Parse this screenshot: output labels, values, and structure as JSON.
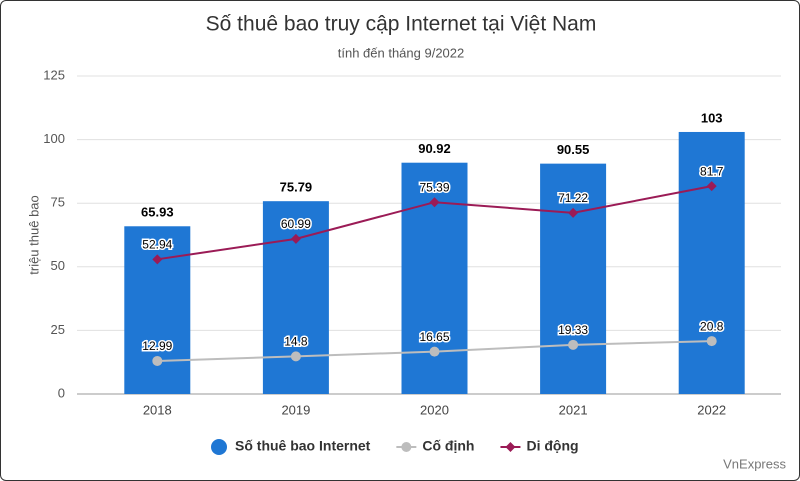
{
  "chart_data": {
    "type": "bar",
    "title": "Số thuê bao truy cập Internet tại Việt Nam",
    "subtitle": "tính đến tháng 9/2022",
    "y_label": "triệu thuê bao",
    "source": "VnExpress",
    "categories": [
      "2018",
      "2019",
      "2020",
      "2021",
      "2022"
    ],
    "series": [
      {
        "name": "Số thuê bao Internet",
        "type": "bar",
        "color": "#1f77d4",
        "values": [
          65.93,
          75.79,
          90.92,
          90.55,
          103
        ]
      },
      {
        "name": "Cố định",
        "type": "line",
        "marker": "circle",
        "color": "#bdbdbd",
        "values": [
          12.99,
          14.8,
          16.65,
          19.33,
          20.8
        ]
      },
      {
        "name": "Di động",
        "type": "line",
        "marker": "diamond",
        "color": "#9b1b56",
        "values": [
          52.94,
          60.99,
          75.39,
          71.22,
          81.7
        ]
      }
    ],
    "ylim": [
      0,
      125
    ],
    "yticks": [
      0,
      25,
      50,
      75,
      100,
      125
    ],
    "grid": true,
    "legend": "bottom"
  }
}
